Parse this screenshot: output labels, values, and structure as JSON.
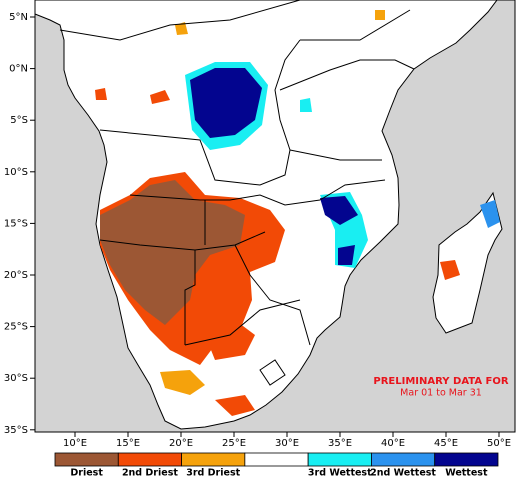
{
  "map": {
    "lon_labels": [
      "10°E",
      "15°E",
      "20°E",
      "25°E",
      "30°E",
      "35°E",
      "40°E",
      "45°E",
      "50°E"
    ],
    "lat_labels": [
      "5°N",
      "0°N",
      "5°S",
      "10°S",
      "15°S",
      "20°S",
      "25°S",
      "30°S",
      "35°S"
    ]
  },
  "legend": {
    "classes": [
      {
        "label": "Driest",
        "color": "#9c5734"
      },
      {
        "label": "2nd Driest",
        "color": "#f24a06"
      },
      {
        "label": "3rd Driest",
        "color": "#f5a20c"
      },
      {
        "label": null,
        "color": "#ffffff"
      },
      {
        "label": "3rd Wettest",
        "color": "#19eef2"
      },
      {
        "label": "2nd Wettest",
        "color": "#2b92ee"
      },
      {
        "label": "Wettest",
        "color": "#03058f"
      }
    ]
  },
  "notice": {
    "line1": "PRELIMINARY DATA FOR",
    "line2": "Mar 01 to Mar 31"
  }
}
